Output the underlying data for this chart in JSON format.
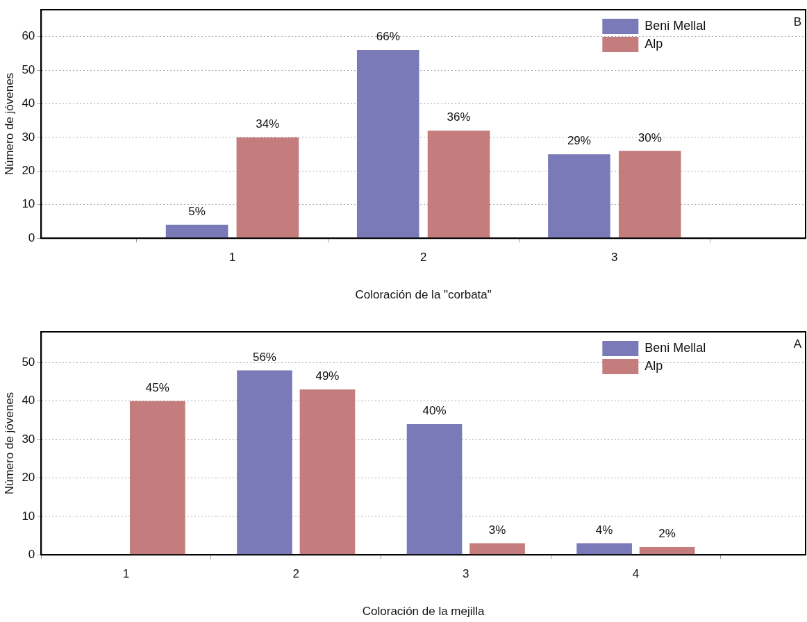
{
  "chart_data": [
    {
      "type": "bar",
      "xlabel": "Coloración de la \"corbata\"",
      "ylabel": "Número de jóvenes",
      "x": [
        1,
        2,
        3
      ],
      "xlim": [
        0,
        4
      ],
      "xticks": [
        1,
        2,
        3
      ],
      "ylim": [
        0,
        68
      ],
      "yticks": [
        0,
        10,
        20,
        30,
        40,
        50,
        60
      ],
      "series": [
        {
          "name": "Beni Mellal",
          "color": "#7a7ab8",
          "values": [
            4,
            56,
            25
          ]
        },
        {
          "name": "Alp",
          "color": "#c47c7c",
          "values": [
            30,
            32,
            26
          ]
        }
      ],
      "annotations": [
        "B",
        "5%",
        "34%",
        "66%",
        "36%",
        "29%",
        "30%"
      ],
      "grid": "y",
      "legend": "top right"
    },
    {
      "type": "bar",
      "xlabel": "Coloración de la mejilla",
      "ylabel": "Número de jóvenes",
      "x": [
        1,
        2,
        3,
        4
      ],
      "xlim": [
        0.5,
        5
      ],
      "xticks": [
        1,
        2,
        3,
        4
      ],
      "ylim": [
        0,
        58
      ],
      "yticks": [
        0,
        10,
        20,
        30,
        40,
        50
      ],
      "series": [
        {
          "name": "Beni Mellal",
          "color": "#7a7ab8",
          "values": [
            0,
            48,
            34,
            3
          ]
        },
        {
          "name": "Alp",
          "color": "#c47c7c",
          "values": [
            40,
            43,
            3,
            2
          ]
        }
      ],
      "annotations": [
        "A",
        "45%",
        "56%",
        "49%",
        "40%",
        "3%",
        "4%",
        "2%"
      ],
      "grid": "y",
      "legend": "top right"
    }
  ]
}
